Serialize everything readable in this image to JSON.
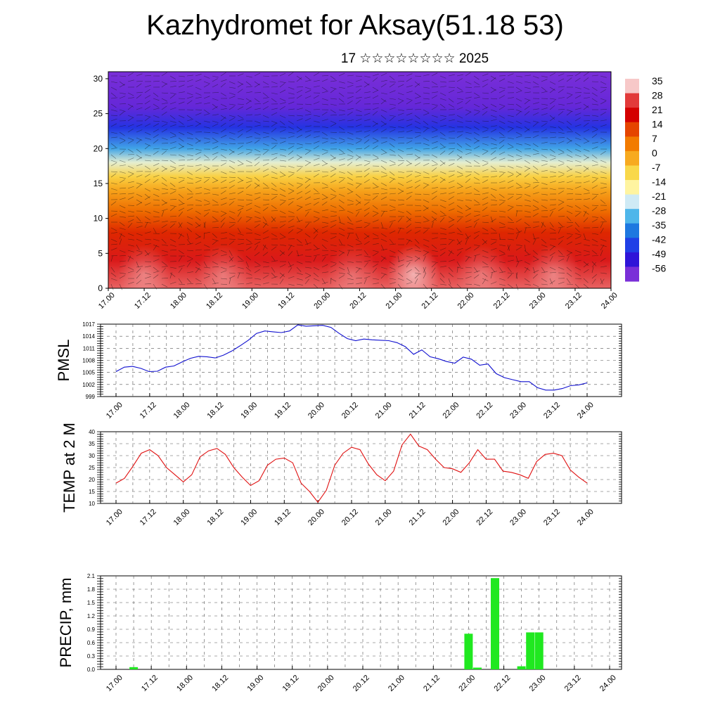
{
  "header": {
    "title": "Kazhydromet for Aksay(51.18 53)",
    "subtitle": "17 ☆☆☆☆☆☆☆☆ 2025"
  },
  "chart_data": [
    {
      "type": "heatmap",
      "name": "cross-section",
      "yticks": [
        "0",
        "5",
        "10",
        "15",
        "20",
        "25",
        "30"
      ],
      "ylim": [
        0,
        31
      ],
      "xticks": [
        "17.00",
        "17.12",
        "18.00",
        "18.12",
        "19.00",
        "19.12",
        "20.00",
        "20.12",
        "21.00",
        "21.12",
        "22.00",
        "22.12",
        "23.00",
        "23.12",
        "24.00"
      ],
      "colorbar": {
        "labels": [
          "35",
          "28",
          "21",
          "14",
          "7",
          "0",
          "-7",
          "-14",
          "-21",
          "-28",
          "-35",
          "-42",
          "-49",
          "-56"
        ],
        "colors": [
          "#f7c8c8",
          "#e23a3a",
          "#d40000",
          "#e54500",
          "#f27b00",
          "#f7aa20",
          "#f9d84a",
          "#fff4a0",
          "#cfeaf5",
          "#4fb6ea",
          "#1e78e0",
          "#2040e6",
          "#2f14d8",
          "#7a2fd8"
        ]
      },
      "temperature_profile": [
        {
          "height": 0,
          "value": 30
        },
        {
          "height": 4,
          "value": 24
        },
        {
          "height": 8,
          "value": 17
        },
        {
          "height": 11,
          "value": 9
        },
        {
          "height": 14,
          "value": 1
        },
        {
          "height": 16,
          "value": -6
        },
        {
          "height": 18,
          "value": -18
        },
        {
          "height": 20,
          "value": -30
        },
        {
          "height": 23,
          "value": -44
        },
        {
          "height": 26,
          "value": -54
        },
        {
          "height": 31,
          "value": -58
        }
      ]
    },
    {
      "type": "line",
      "name": "pmsl",
      "ylabel": "PMSL",
      "yticks": [
        "1017",
        "1014",
        "1011",
        "1008",
        "1005",
        "1002",
        "999"
      ],
      "ylim": [
        999,
        1017
      ],
      "xticks": [
        "17.00",
        "17.12",
        "18.00",
        "18.12",
        "19.00",
        "19.12",
        "20.00",
        "20.12",
        "21.00",
        "21.12",
        "22.00",
        "22.12",
        "23.00",
        "23.12",
        "24.00"
      ],
      "color": "#1010d0",
      "values": [
        1005.2,
        1006.3,
        1006.5,
        1006.0,
        1005.2,
        1005.3,
        1006.3,
        1006.6,
        1007.6,
        1008.5,
        1009.0,
        1008.9,
        1008.6,
        1009.3,
        1010.3,
        1011.6,
        1013.0,
        1014.7,
        1015.3,
        1015.1,
        1014.9,
        1015.3,
        1016.8,
        1016.5,
        1016.6,
        1016.7,
        1016.2,
        1014.7,
        1013.4,
        1012.9,
        1013.3,
        1013.1,
        1013.0,
        1012.9,
        1012.4,
        1011.4,
        1009.5,
        1010.6,
        1008.9,
        1008.4,
        1007.7,
        1007.3,
        1008.8,
        1008.3,
        1006.8,
        1007.1,
        1004.7,
        1003.7,
        1003.2,
        1002.7,
        1002.7,
        1001.2,
        1000.6,
        1000.6,
        1001.0,
        1001.7,
        1001.9,
        1002.4
      ]
    },
    {
      "type": "line",
      "name": "temperature",
      "ylabel": "TEMP at 2 M",
      "yticks": [
        "40",
        "35",
        "30",
        "25",
        "20",
        "15",
        "10"
      ],
      "ylim": [
        10,
        40
      ],
      "xticks": [
        "17.00",
        "17.12",
        "18.00",
        "18.12",
        "19.00",
        "19.12",
        "20.00",
        "20.12",
        "21.00",
        "21.12",
        "22.00",
        "22.12",
        "23.00",
        "23.12",
        "24.00"
      ],
      "color": "#e01010",
      "values": [
        18.5,
        20.5,
        25.5,
        31.0,
        32.5,
        30.0,
        25.0,
        22.0,
        19.0,
        22.0,
        29.5,
        32.0,
        33.0,
        30.5,
        25.0,
        21.0,
        17.5,
        19.5,
        26.0,
        28.5,
        29.0,
        27.0,
        18.5,
        15.0,
        10.5,
        15.5,
        26.0,
        31.0,
        33.5,
        32.5,
        26.5,
        22.0,
        19.5,
        23.5,
        34.5,
        39.0,
        34.0,
        32.5,
        28.5,
        25.0,
        24.5,
        23.0,
        27.0,
        32.5,
        28.5,
        28.5,
        23.5,
        23.0,
        22.0,
        20.5,
        27.5,
        30.5,
        31.0,
        30.0,
        24.0,
        21.0,
        18.5
      ]
    },
    {
      "type": "bar",
      "name": "precipitation",
      "ylabel": "PRECIP, mm",
      "yticks": [
        "2.1",
        "1.8",
        "1.5",
        "1.2",
        "0.9",
        "0.6",
        "0.3",
        "0.0"
      ],
      "ylim": [
        0,
        2.1
      ],
      "xticks": [
        "17.00",
        "17.12",
        "18.00",
        "18.12",
        "19.00",
        "19.12",
        "20.00",
        "20.12",
        "21.00",
        "21.12",
        "22.00",
        "22.12",
        "23.00",
        "23.12",
        "24.00"
      ],
      "color": "#20e820",
      "bars": [
        {
          "t": 17.25,
          "value": 0.05
        },
        {
          "t": 22.0,
          "value": 0.8
        },
        {
          "t": 22.125,
          "value": 0.04
        },
        {
          "t": 22.375,
          "value": 2.05
        },
        {
          "t": 22.75,
          "value": 0.07
        },
        {
          "t": 22.875,
          "value": 0.83
        },
        {
          "t": 23.0,
          "value": 0.83
        }
      ]
    }
  ]
}
